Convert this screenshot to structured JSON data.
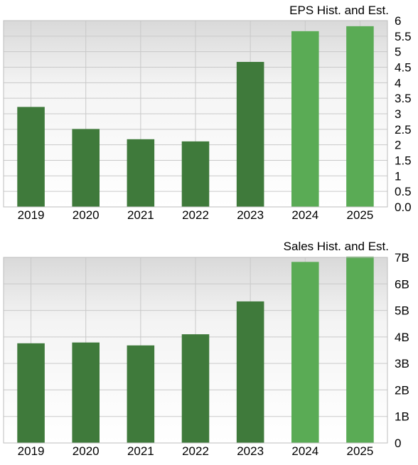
{
  "chart_data": [
    {
      "type": "bar",
      "title": "EPS Hist. and Est.",
      "categories": [
        "2019",
        "2020",
        "2021",
        "2022",
        "2023",
        "2024",
        "2025"
      ],
      "values": [
        3.22,
        2.51,
        2.18,
        2.11,
        4.67,
        5.66,
        5.82
      ],
      "estimate_flags": [
        false,
        false,
        false,
        false,
        false,
        true,
        true
      ],
      "ylim": [
        0,
        6
      ],
      "yticks": [
        "0.0",
        "0.5",
        "1",
        "1.5",
        "2",
        "2.5",
        "3",
        "3.5",
        "4",
        "4.5",
        "5",
        "5.5",
        "6"
      ],
      "ytick_values": [
        0,
        0.5,
        1,
        1.5,
        2,
        2.5,
        3,
        3.5,
        4,
        4.5,
        5,
        5.5,
        6
      ],
      "grid": true,
      "colors": {
        "historical": "#3f7a3b",
        "estimate": "#5aab55"
      }
    },
    {
      "type": "bar",
      "title": "Sales Hist. and Est.",
      "categories": [
        "2019",
        "2020",
        "2021",
        "2022",
        "2023",
        "2024",
        "2025"
      ],
      "values": [
        3.76,
        3.79,
        3.68,
        4.1,
        5.34,
        6.83,
        7.03
      ],
      "value_unit": "B",
      "estimate_flags": [
        false,
        false,
        false,
        false,
        false,
        true,
        true
      ],
      "ylim": [
        0,
        7
      ],
      "yticks": [
        "0",
        "1B",
        "2B",
        "3B",
        "4B",
        "5B",
        "6B",
        "7B"
      ],
      "ytick_values": [
        0,
        1,
        2,
        3,
        4,
        5,
        6,
        7
      ],
      "grid": true,
      "colors": {
        "historical": "#3f7a3b",
        "estimate": "#5aab55"
      }
    }
  ]
}
